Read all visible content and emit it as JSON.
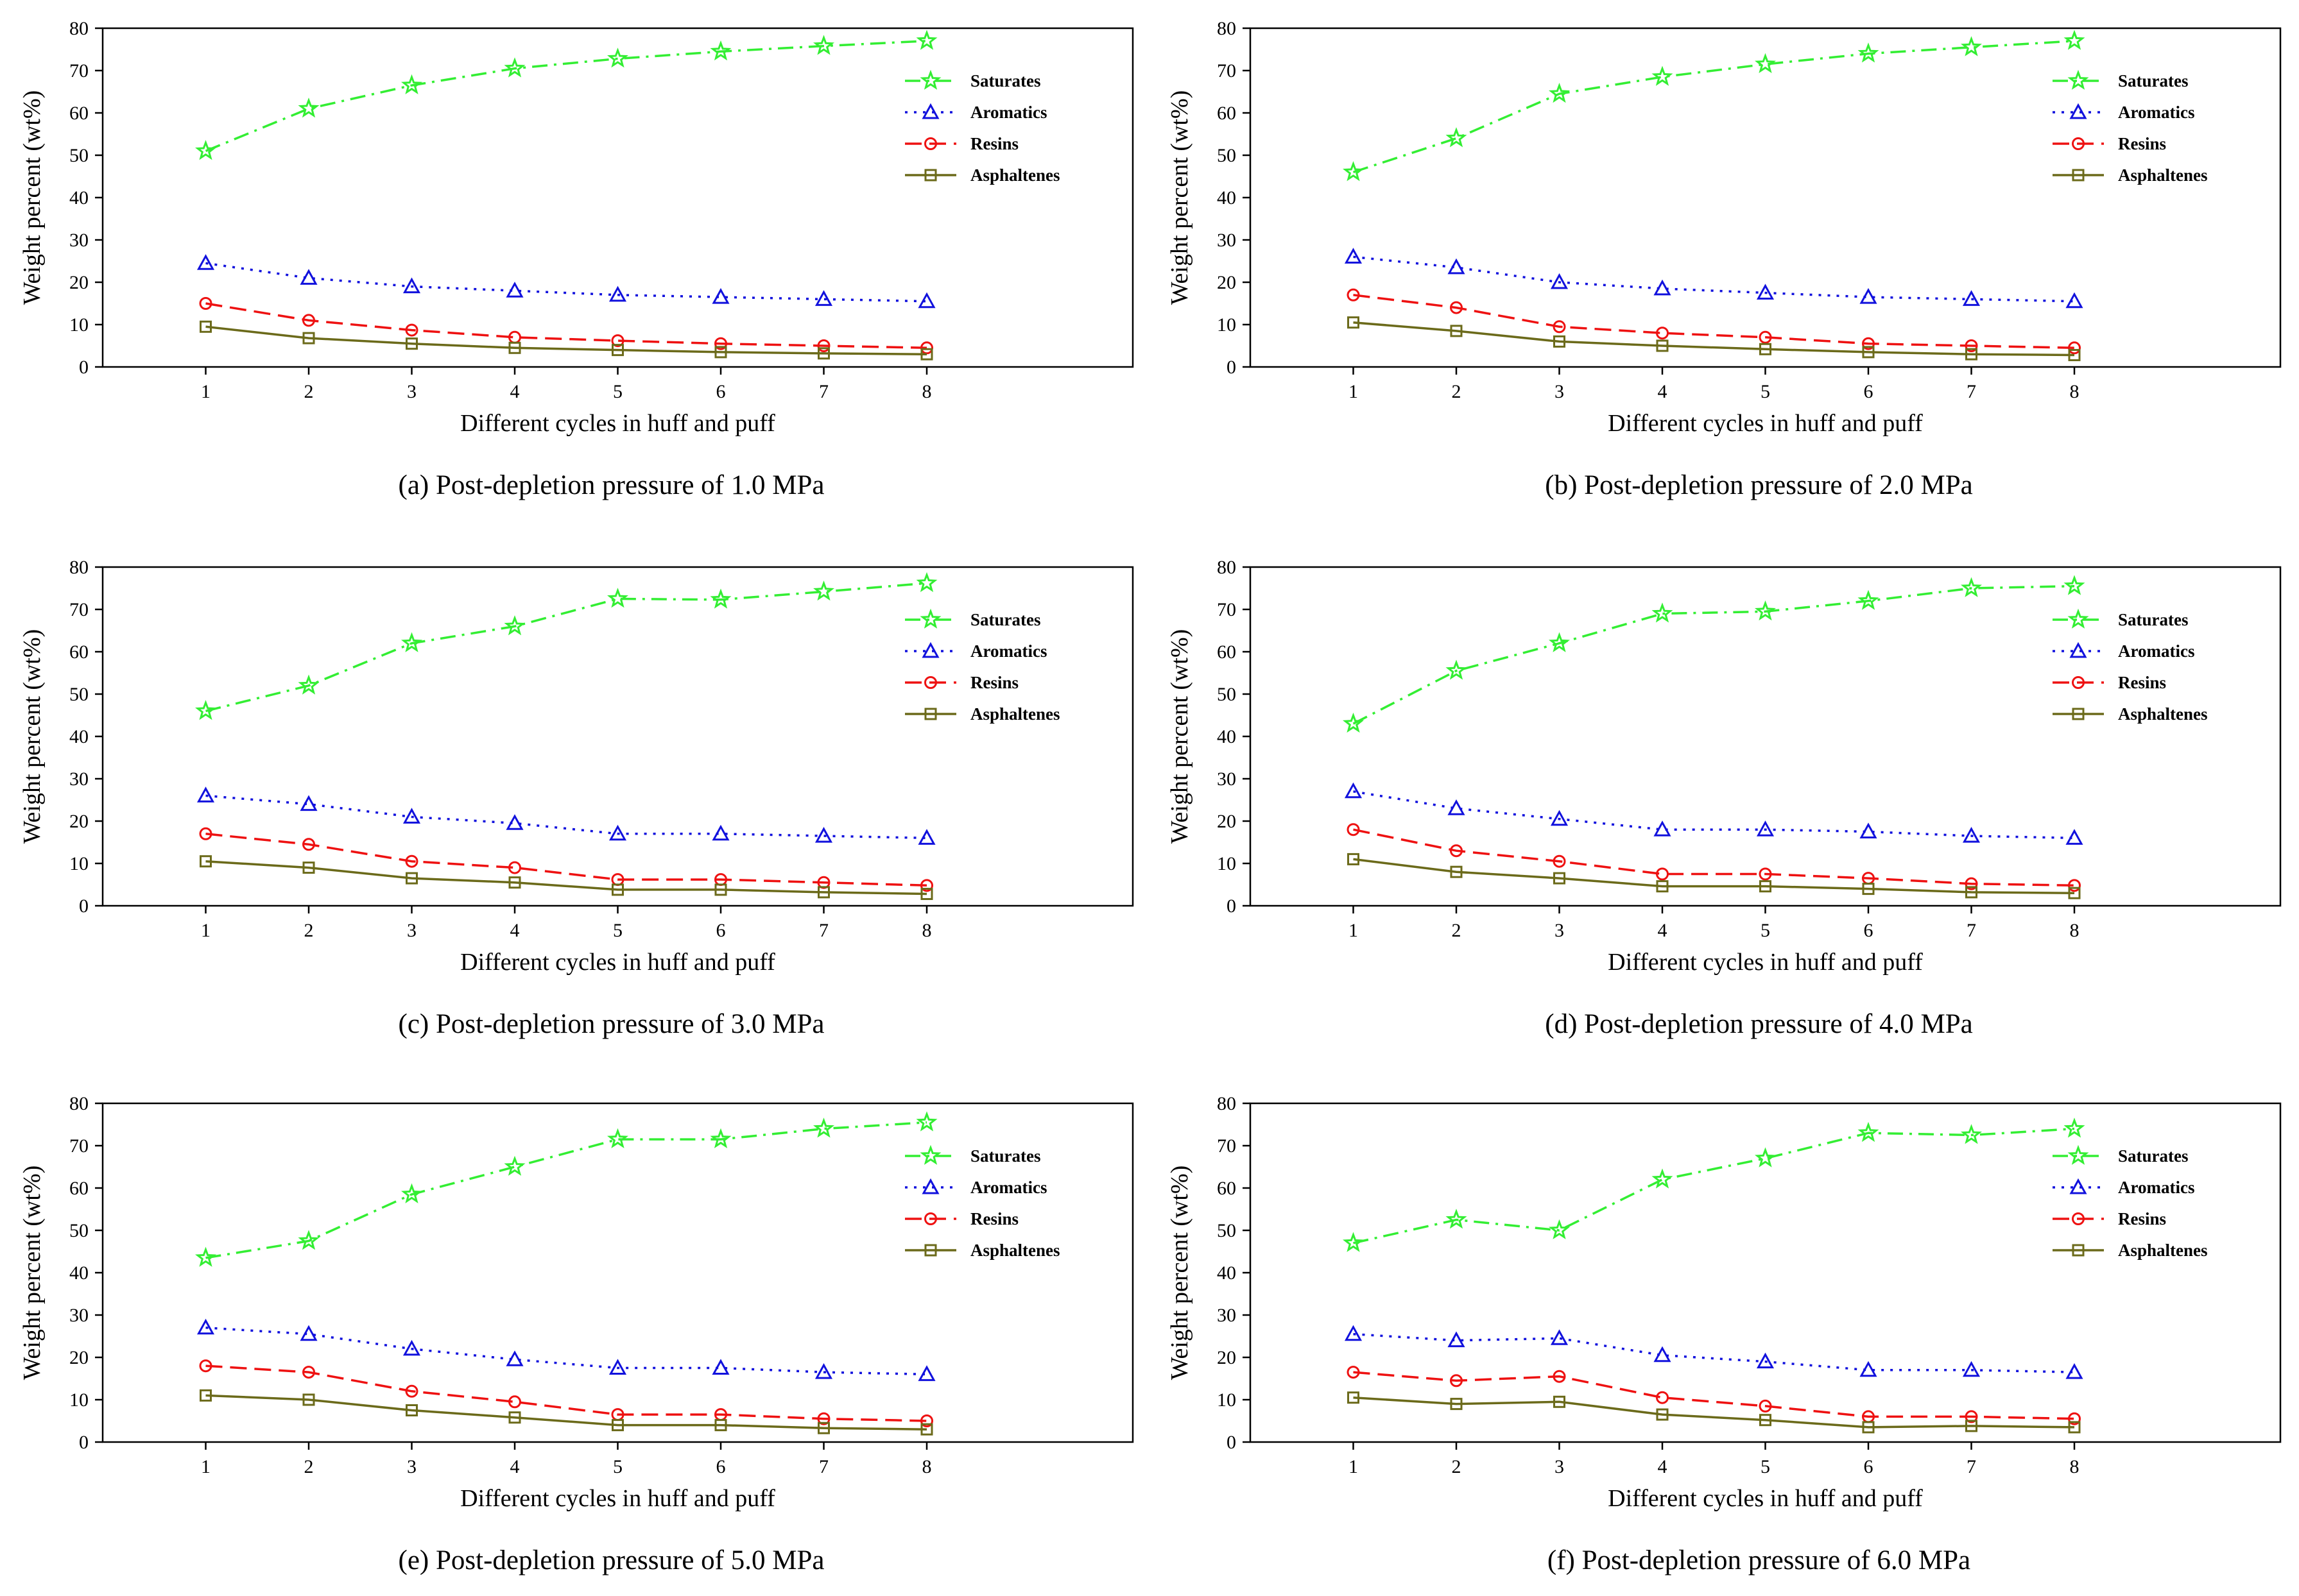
{
  "figure": {
    "series_meta": [
      {
        "name": "Saturates",
        "color": "#33ee33",
        "marker": "star",
        "dash": "dashdot"
      },
      {
        "name": "Aromatics",
        "color": "#1111dd",
        "marker": "triangle",
        "dash": "dotted"
      },
      {
        "name": "Resins",
        "color": "#ee1111",
        "marker": "circle",
        "dash": "dashed"
      },
      {
        "name": "Asphaltenes",
        "color": "#6b6a1a",
        "marker": "square",
        "dash": "solid"
      }
    ]
  },
  "chart_data": [
    {
      "type": "line",
      "caption": "(a) Post-depletion pressure of 1.0 MPa",
      "xlabel": "Different cycles in huff and puff",
      "ylabel": "Weight percent (wt%)",
      "x": [
        1,
        2,
        3,
        4,
        5,
        6,
        7,
        8
      ],
      "xlim": [
        0,
        10
      ],
      "ylim": [
        0,
        80
      ],
      "yticks": [
        0,
        10,
        20,
        30,
        40,
        50,
        60,
        70,
        80
      ],
      "xticks": [
        1,
        2,
        3,
        4,
        5,
        6,
        7,
        8
      ],
      "legend": "top-right",
      "series": [
        {
          "name": "Saturates",
          "values": [
            51,
            61,
            66.5,
            70.5,
            72.8,
            74.5,
            75.8,
            77
          ]
        },
        {
          "name": "Aromatics",
          "values": [
            24.5,
            21,
            19,
            18,
            17,
            16.5,
            16,
            15.5
          ]
        },
        {
          "name": "Resins",
          "values": [
            15,
            11,
            8.7,
            7,
            6.2,
            5.5,
            5,
            4.5
          ]
        },
        {
          "name": "Asphaltenes",
          "values": [
            9.5,
            6.8,
            5.5,
            4.5,
            4,
            3.5,
            3.2,
            3
          ]
        }
      ]
    },
    {
      "type": "line",
      "caption": "(b) Post-depletion pressure of 2.0 MPa",
      "xlabel": "Different cycles in huff and puff",
      "ylabel": "Weight percent (wt%)",
      "x": [
        1,
        2,
        3,
        4,
        5,
        6,
        7,
        8
      ],
      "xlim": [
        0,
        10
      ],
      "ylim": [
        0,
        80
      ],
      "yticks": [
        0,
        10,
        20,
        30,
        40,
        50,
        60,
        70,
        80
      ],
      "xticks": [
        1,
        2,
        3,
        4,
        5,
        6,
        7,
        8
      ],
      "legend": "top-right",
      "series": [
        {
          "name": "Saturates",
          "values": [
            46,
            54,
            64.5,
            68.5,
            71.5,
            74,
            75.5,
            77
          ]
        },
        {
          "name": "Aromatics",
          "values": [
            26,
            23.5,
            20,
            18.5,
            17.5,
            16.5,
            16,
            15.5
          ]
        },
        {
          "name": "Resins",
          "values": [
            17,
            14,
            9.5,
            8,
            7,
            5.5,
            5,
            4.5
          ]
        },
        {
          "name": "Asphaltenes",
          "values": [
            10.5,
            8.5,
            6,
            5,
            4.2,
            3.5,
            3,
            2.8
          ]
        }
      ]
    },
    {
      "type": "line",
      "caption": "(c) Post-depletion pressure of 3.0 MPa",
      "xlabel": "Different cycles in huff and puff",
      "ylabel": "Weight percent (wt%)",
      "x": [
        1,
        2,
        3,
        4,
        5,
        6,
        7,
        8
      ],
      "xlim": [
        0,
        10
      ],
      "ylim": [
        0,
        80
      ],
      "yticks": [
        0,
        10,
        20,
        30,
        40,
        50,
        60,
        70,
        80
      ],
      "xticks": [
        1,
        2,
        3,
        4,
        5,
        6,
        7,
        8
      ],
      "legend": "top-right",
      "series": [
        {
          "name": "Saturates",
          "values": [
            46,
            52,
            62,
            66,
            72.5,
            72.3,
            74.2,
            76.2
          ]
        },
        {
          "name": "Aromatics",
          "values": [
            26,
            24,
            21,
            19.5,
            17,
            17,
            16.5,
            16
          ]
        },
        {
          "name": "Resins",
          "values": [
            17,
            14.5,
            10.5,
            9,
            6.2,
            6.2,
            5.5,
            4.8
          ]
        },
        {
          "name": "Asphaltenes",
          "values": [
            10.5,
            9,
            6.5,
            5.5,
            3.8,
            3.8,
            3.2,
            2.8
          ]
        }
      ]
    },
    {
      "type": "line",
      "caption": "(d) Post-depletion pressure of 4.0 MPa",
      "xlabel": "Different cycles in huff and puff",
      "ylabel": "Weight percent (wt%)",
      "x": [
        1,
        2,
        3,
        4,
        5,
        6,
        7,
        8
      ],
      "xlim": [
        0,
        10
      ],
      "ylim": [
        0,
        80
      ],
      "yticks": [
        0,
        10,
        20,
        30,
        40,
        50,
        60,
        70,
        80
      ],
      "xticks": [
        1,
        2,
        3,
        4,
        5,
        6,
        7,
        8
      ],
      "legend": "top-right",
      "series": [
        {
          "name": "Saturates",
          "values": [
            43,
            55.5,
            62,
            69,
            69.5,
            72,
            75,
            75.5
          ]
        },
        {
          "name": "Aromatics",
          "values": [
            27,
            23,
            20.5,
            18,
            18,
            17.5,
            16.5,
            16
          ]
        },
        {
          "name": "Resins",
          "values": [
            18,
            13,
            10.5,
            7.5,
            7.5,
            6.5,
            5.2,
            4.8
          ]
        },
        {
          "name": "Asphaltenes",
          "values": [
            11,
            8,
            6.5,
            4.6,
            4.6,
            4,
            3.2,
            3
          ]
        }
      ]
    },
    {
      "type": "line",
      "caption": "(e) Post-depletion pressure of 5.0 MPa",
      "xlabel": "Different cycles in huff and puff",
      "ylabel": "Weight percent (wt%)",
      "x": [
        1,
        2,
        3,
        4,
        5,
        6,
        7,
        8
      ],
      "xlim": [
        0,
        10
      ],
      "ylim": [
        0,
        80
      ],
      "yticks": [
        0,
        10,
        20,
        30,
        40,
        50,
        60,
        70,
        80
      ],
      "xticks": [
        1,
        2,
        3,
        4,
        5,
        6,
        7,
        8
      ],
      "legend": "top-right",
      "series": [
        {
          "name": "Saturates",
          "values": [
            43.5,
            47.5,
            58.5,
            65,
            71.5,
            71.5,
            74,
            75.5
          ]
        },
        {
          "name": "Aromatics",
          "values": [
            27,
            25.5,
            22,
            19.5,
            17.5,
            17.5,
            16.5,
            16
          ]
        },
        {
          "name": "Resins",
          "values": [
            18,
            16.5,
            12,
            9.5,
            6.5,
            6.5,
            5.5,
            5
          ]
        },
        {
          "name": "Asphaltenes",
          "values": [
            11,
            10,
            7.5,
            5.8,
            4,
            4,
            3.3,
            3
          ]
        }
      ]
    },
    {
      "type": "line",
      "caption": "(f) Post-depletion pressure of 6.0 MPa",
      "xlabel": "Different cycles in huff and puff",
      "ylabel": "Weight percent (wt%)",
      "x": [
        1,
        2,
        3,
        4,
        5,
        6,
        7,
        8
      ],
      "xlim": [
        0,
        10
      ],
      "ylim": [
        0,
        80
      ],
      "yticks": [
        0,
        10,
        20,
        30,
        40,
        50,
        60,
        70,
        80
      ],
      "xticks": [
        1,
        2,
        3,
        4,
        5,
        6,
        7,
        8
      ],
      "legend": "top-right",
      "series": [
        {
          "name": "Saturates",
          "values": [
            47,
            52.5,
            50,
            62,
            67,
            73,
            72.5,
            74
          ]
        },
        {
          "name": "Aromatics",
          "values": [
            25.5,
            24,
            24.5,
            20.5,
            19,
            17,
            17,
            16.5
          ]
        },
        {
          "name": "Resins",
          "values": [
            16.5,
            14.5,
            15.5,
            10.5,
            8.5,
            6,
            6,
            5.5
          ]
        },
        {
          "name": "Asphaltenes",
          "values": [
            10.5,
            9,
            9.5,
            6.5,
            5.2,
            3.5,
            3.8,
            3.5
          ]
        }
      ]
    }
  ]
}
